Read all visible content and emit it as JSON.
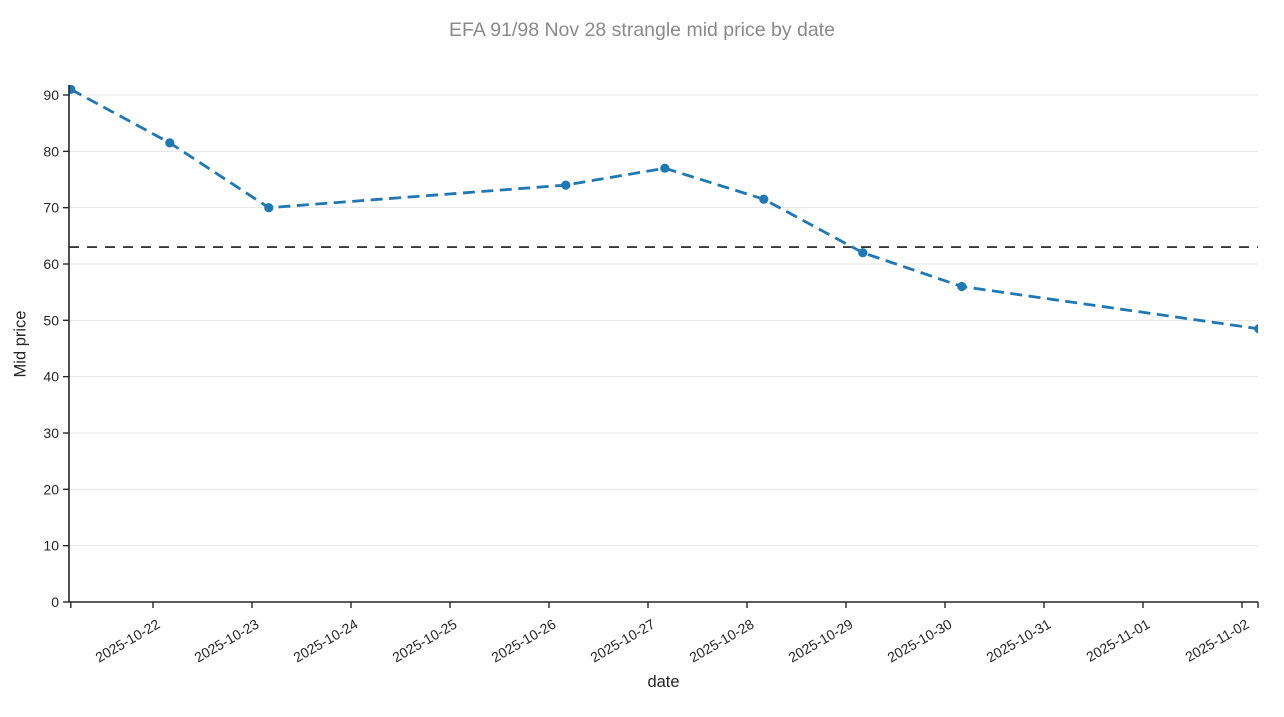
{
  "chart_data": {
    "type": "line",
    "title": "EFA 91/98 Nov 28 strangle mid price by date",
    "xlabel": "date",
    "ylabel": "Mid price",
    "x_tick_labels": [
      "2025-10-22",
      "2025-10-23",
      "2025-10-24",
      "2025-10-25",
      "2025-10-26",
      "2025-10-27",
      "2025-10-28",
      "2025-10-29",
      "2025-10-30",
      "2025-10-31",
      "2025-11-01",
      "2025-11-02"
    ],
    "y_ticks": [
      0,
      10,
      20,
      30,
      40,
      50,
      60,
      70,
      80,
      90
    ],
    "ylim": [
      0,
      92
    ],
    "grid": "horizontal-only",
    "legend": "none",
    "series": [
      {
        "name": "strangle-mid-price",
        "color": "#1f77b4",
        "line_style": "dashed",
        "marker": "circle",
        "points": [
          {
            "date": "2025-10-21",
            "value": 91
          },
          {
            "date": "2025-10-22",
            "value": 81.5
          },
          {
            "date": "2025-10-23",
            "value": 70
          },
          {
            "date": "2025-10-26",
            "value": 74
          },
          {
            "date": "2025-10-27",
            "value": 77
          },
          {
            "date": "2025-10-28",
            "value": 71.5
          },
          {
            "date": "2025-10-29",
            "value": 62
          },
          {
            "date": "2025-10-30",
            "value": 56
          },
          {
            "date": "2025-11-02",
            "value": 48.5
          }
        ]
      }
    ],
    "reference_line": {
      "value": 63,
      "color": "#1a1a1a",
      "style": "dashed"
    },
    "colors": {
      "grid": "#e4e4e4",
      "axis": "#262626",
      "tick_label": "#262626",
      "title": "#8a8a8a"
    }
  }
}
